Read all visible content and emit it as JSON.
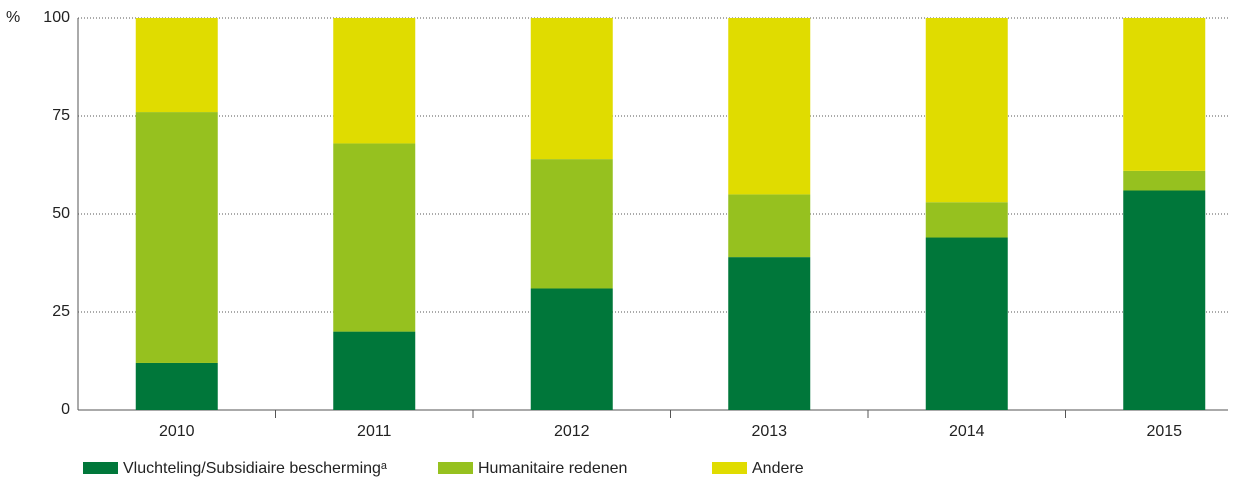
{
  "chart_data": {
    "type": "stacked_bar",
    "y_label": "%",
    "categories": [
      "2010",
      "2011",
      "2012",
      "2013",
      "2014",
      "2015"
    ],
    "series": [
      {
        "name": "Vluchteling/Subsidiaire beschermingᵃ",
        "color": "#00773a",
        "values": [
          12,
          20,
          31,
          39,
          44,
          56
        ]
      },
      {
        "name": "Humanitaire redenen",
        "color": "#96c11f",
        "values": [
          64,
          48,
          33,
          16,
          9,
          5
        ]
      },
      {
        "name": "Andere",
        "color": "#e0dc00",
        "values": [
          24,
          32,
          36,
          45,
          47,
          39
        ]
      }
    ],
    "ylim": [
      0,
      100
    ],
    "yticks": [
      0,
      25,
      50,
      75,
      100
    ],
    "grid": true,
    "legend": "bottom"
  }
}
